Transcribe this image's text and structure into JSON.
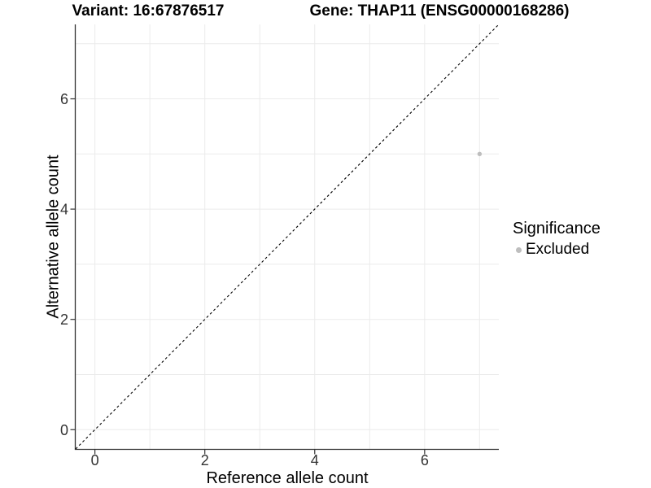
{
  "chart_data": {
    "type": "scatter",
    "title_variant": "Variant: 16:67876517",
    "title_gene": "Gene: THAP11 (ENSG00000168286)",
    "xlabel": "Reference allele count",
    "ylabel": "Alternative allele count",
    "xlim": [
      -0.35,
      7.35
    ],
    "ylim": [
      -0.35,
      7.35
    ],
    "xticks": [
      0,
      2,
      4,
      6
    ],
    "yticks": [
      0,
      2,
      4,
      6
    ],
    "grid_positions": [
      0,
      1,
      2,
      3,
      4,
      5,
      6,
      7
    ],
    "grid_on": true,
    "points": [
      {
        "x": 7,
        "y": 5,
        "series": "Excluded"
      }
    ],
    "identity_line": {
      "x1": -0.35,
      "y1": -0.35,
      "x2": 7.35,
      "y2": 7.35,
      "style": "dashed",
      "color": "#000000"
    },
    "legend": {
      "position": "right",
      "title": "Significance",
      "entries": [
        {
          "label": "Excluded",
          "color": "#bebebe"
        }
      ]
    },
    "colors": {
      "point": "#bebebe",
      "grid": "#ebebeb",
      "axis": "#333333",
      "tick_label": "#333333",
      "background": "#ffffff"
    }
  }
}
